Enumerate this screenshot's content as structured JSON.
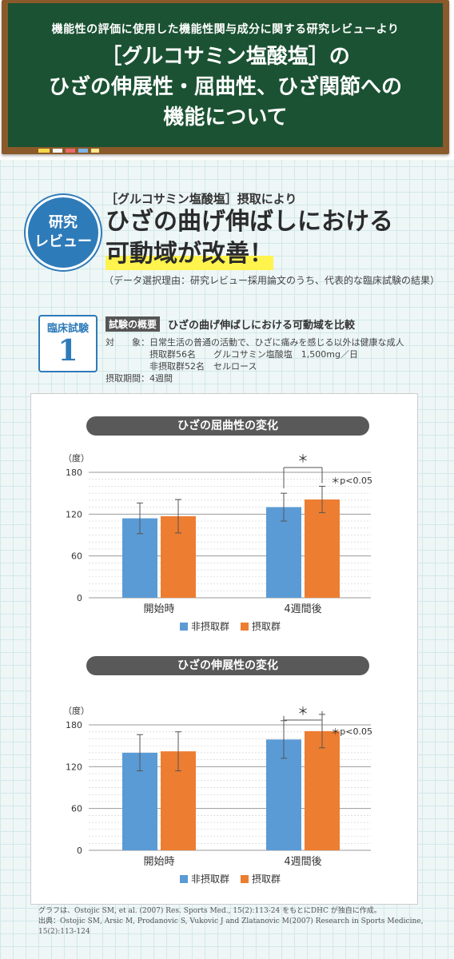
{
  "header": {
    "subtitle": "機能性の評価に使用した機能性関与成分に関する研究レビューより",
    "title_line1": "［グルコサミン塩酸塩］の",
    "title_line2": "ひざの伸展性・屈曲性、ひざ関節への",
    "title_line3": "機能について"
  },
  "review": {
    "badge_line1": "研究",
    "badge_line2": "レビュー",
    "lead": "［グルコサミン塩酸塩］摂取により",
    "headline1": "ひざの曲げ伸ばしにおける",
    "headline2": "可動域が改善！",
    "note": "（データ選択理由：研究レビュー採用論文のうち、代表的な臨床試験の結果）"
  },
  "trial": {
    "label": "臨床試験",
    "number": "1",
    "overview_tag": "試験の概要",
    "overview_text": "ひざの曲げ伸ばしにおける可動域を比較",
    "subjects": "対　　象：日常生活の普通の活動で、ひざに痛みを感じる以外は健康な成人",
    "group1": "　　　　　摂取群56名　　グルコサミン塩酸塩　1,500mg／日",
    "group2": "　　　　　非摂取群52名　セルロース",
    "period": "摂取期間：4週間"
  },
  "colors": {
    "non_intake": "#5b9bd5",
    "intake": "#ed7d31"
  },
  "chart_data": [
    {
      "type": "bar",
      "title": "ひざの屈曲性の変化",
      "ylabel": "（度）",
      "ylim": [
        0,
        180
      ],
      "yticks": [
        "0",
        "60",
        "120",
        "180"
      ],
      "categories": [
        "開始時",
        "4週間後"
      ],
      "series": [
        {
          "name": "非摂取群",
          "values": [
            114,
            130
          ],
          "error": [
            22,
            20
          ]
        },
        {
          "name": "摂取群",
          "values": [
            117,
            141
          ],
          "error": [
            24,
            19
          ]
        }
      ],
      "annotation": "＊p<0.05",
      "significance_mark": "＊"
    },
    {
      "type": "bar",
      "title": "ひざの伸展性の変化",
      "ylabel": "（度）",
      "ylim": [
        0,
        180
      ],
      "yticks": [
        "0",
        "60",
        "120",
        "180"
      ],
      "categories": [
        "開始時",
        "4週間後"
      ],
      "series": [
        {
          "name": "非摂取群",
          "values": [
            140,
            159
          ],
          "error": [
            26,
            27
          ]
        },
        {
          "name": "摂取群",
          "values": [
            142,
            171
          ],
          "error": [
            28,
            24
          ]
        }
      ],
      "annotation": "＊p<0.05",
      "significance_mark": "＊"
    }
  ],
  "footnote": {
    "line1": "グラフは、Ostojic SM, et al. (2007) Res. Sports Med., 15(2):113-24 をもとにDHC が独自に作成。",
    "line2": "出典：Ostojic SM, Arsic M, Prodanovic S, Vukovic J and Zlatanovic M(2007) Research in Sports Medicine,",
    "line3": "15(2):113-124"
  }
}
